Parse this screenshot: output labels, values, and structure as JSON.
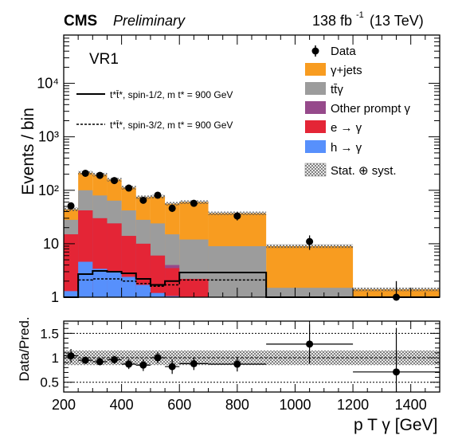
{
  "header": {
    "experiment": "CMS",
    "status": "Preliminary",
    "lumi_prefix": "138 fb",
    "lumi_exp": "-1",
    "lumi_suffix": "(13 TeV)"
  },
  "region_label": "VR1",
  "legend": {
    "data": "Data",
    "gjets": "γ+jets",
    "ttg": "tt̄γ",
    "other": "Other prompt γ",
    "egamma": "e → γ",
    "hgamma": "h → γ",
    "unc": "Stat. ⊕ syst.",
    "sig_half": "t*t̄*, spin-1/2, m t* = 900 GeV",
    "sig_threehalf": "t*t̄*, spin-3/2, m t* = 900 GeV"
  },
  "axes": {
    "ylabel_top": "Events / bin",
    "ylabel_bottom": "Data/Pred.",
    "xlabel": "p T γ [GeV]",
    "xticks": [
      "200",
      "400",
      "600",
      "800",
      "1000",
      "1200",
      "1400"
    ],
    "yticks_top": [
      "1",
      "10",
      "10²",
      "10³",
      "10⁴"
    ],
    "yticks_bottom": [
      "0.5",
      "1",
      "1.5"
    ]
  },
  "colors": {
    "gjets": "#F89C20",
    "ttg": "#9C9C9C",
    "other": "#964A8B",
    "egamma": "#E42536",
    "hgamma": "#5790FC"
  },
  "chart_data": {
    "type": "bar",
    "stacked": true,
    "log_y": true,
    "xlim": [
      200,
      1500
    ],
    "ylim_top": [
      1,
      80000
    ],
    "ylim_bottom": [
      0.3,
      1.75
    ],
    "bin_edges": [
      200,
      250,
      300,
      350,
      400,
      450,
      500,
      550,
      600,
      700,
      900,
      1200,
      1500
    ],
    "series": [
      {
        "name": "h → γ",
        "key": "hgamma",
        "values": [
          1.3,
          4.6,
          3.4,
          3.1,
          2.4,
          1.7,
          1.2,
          1.05,
          1.0,
          1.0,
          1.0,
          1.0
        ]
      },
      {
        "name": "e → γ",
        "key": "egamma",
        "values": [
          15,
          42,
          30,
          24,
          14,
          10,
          6,
          3.5,
          2.2,
          1.0,
          1.0,
          1.0
        ]
      },
      {
        "name": "Other prompt γ",
        "key": "other",
        "values": [
          15,
          42,
          30,
          24,
          14,
          10,
          6,
          4.0,
          2.2,
          1.0,
          1.0,
          1.0
        ]
      },
      {
        "name": "tt̄γ",
        "key": "ttg",
        "values": [
          28,
          100,
          80,
          64,
          42,
          28,
          24,
          15,
          12,
          9,
          1.5,
          1.0
        ]
      },
      {
        "name": "γ+jets",
        "key": "gjets",
        "values": [
          44,
          212,
          196,
          158,
          112,
          74,
          76,
          56,
          60,
          37,
          9,
          1.4
        ]
      }
    ],
    "signal": [
      {
        "name": "spin-1/2",
        "style": "solid",
        "values": [
          1.0,
          2.7,
          3.1,
          3.0,
          2.8,
          2.2,
          1.7,
          2.0,
          2.9,
          2.9,
          1.0,
          1.0
        ]
      },
      {
        "name": "spin-3/2",
        "style": "dashed",
        "values": [
          1.0,
          2.1,
          2.2,
          2.2,
          2.0,
          1.8,
          1.6,
          1.7,
          2.1,
          2.1,
          1.0,
          1.0
        ]
      }
    ],
    "data": {
      "x": [
        225,
        275,
        325,
        375,
        425,
        475,
        525,
        575,
        650,
        800,
        1050,
        1350
      ],
      "y": [
        51,
        208,
        190,
        152,
        110,
        65,
        81,
        46,
        57,
        33,
        11,
        1.0
      ],
      "ratio": [
        1.04,
        0.95,
        0.92,
        0.96,
        0.87,
        0.85,
        1.0,
        0.82,
        0.88,
        0.87,
        1.28,
        0.71
      ],
      "ratio_err": [
        0.14,
        0.07,
        0.07,
        0.08,
        0.1,
        0.12,
        0.11,
        0.15,
        0.13,
        0.15,
        0.4,
        0.9
      ]
    },
    "ratio_band": 0.15
  }
}
